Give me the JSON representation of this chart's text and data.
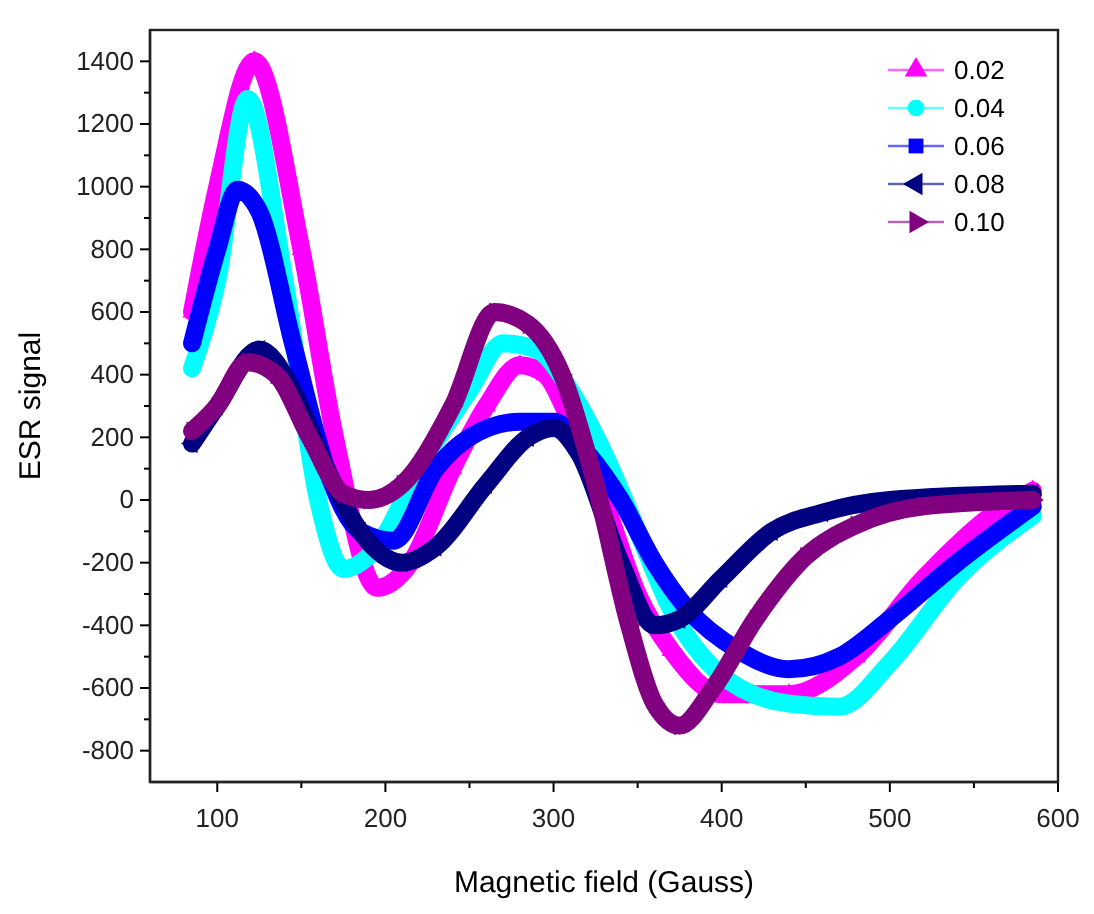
{
  "chart_data": {
    "type": "line",
    "xlabel": "Magnetic field (Gauss)",
    "ylabel": "ESR signal",
    "xlim": [
      60,
      600
    ],
    "ylim": [
      -900,
      1500
    ],
    "xticks": [
      100,
      {
        "value": 150,
        "label": null
      },
      200,
      {
        "value": 250,
        "label": null
      },
      300,
      {
        "value": 350,
        "label": null
      },
      400,
      {
        "value": 450,
        "label": null
      },
      500,
      {
        "value": 550,
        "label": null
      },
      600
    ],
    "yticks": [
      -800,
      {
        "value": -700,
        "label": null
      },
      -600,
      {
        "value": -500,
        "label": null
      },
      -400,
      {
        "value": -300,
        "label": null
      },
      -200,
      {
        "value": -100,
        "label": null
      },
      0,
      {
        "value": 100,
        "label": null
      },
      200,
      {
        "value": 300,
        "label": null
      },
      400,
      {
        "value": 500,
        "label": null
      },
      600,
      {
        "value": 700,
        "label": null
      },
      800,
      {
        "value": 900,
        "label": null
      },
      1000,
      {
        "value": 1100,
        "label": null
      },
      1200,
      {
        "value": 1300,
        "label": null
      },
      1400
    ],
    "legend": "top right",
    "grid": false,
    "series": [
      {
        "name": "0.02",
        "color": "#ff00ff",
        "marker": "triangle",
        "x": [
          85,
          100,
          122,
          150,
          170,
          195,
          215,
          240,
          260,
          280,
          295,
          310,
          330,
          350,
          370,
          400,
          440,
          480,
          520,
          560,
          585
        ],
        "values": [
          600,
          1000,
          1400,
          800,
          200,
          -280,
          -200,
          100,
          300,
          430,
          400,
          250,
          0,
          -300,
          -480,
          -620,
          -620,
          -500,
          -250,
          -50,
          30
        ]
      },
      {
        "name": "0.04",
        "color": "#00ffff",
        "marker": "circle",
        "x": [
          85,
          100,
          118,
          140,
          160,
          175,
          195,
          220,
          250,
          270,
          290,
          310,
          330,
          350,
          370,
          400,
          440,
          470,
          500,
          540,
          585
        ],
        "values": [
          420,
          700,
          1280,
          700,
          0,
          -220,
          -150,
          100,
          350,
          500,
          480,
          350,
          150,
          -100,
          -350,
          -560,
          -650,
          -660,
          -520,
          -250,
          -50
        ]
      },
      {
        "name": "0.06",
        "color": "#0000ff",
        "marker": "square",
        "x": [
          85,
          100,
          112,
          125,
          145,
          165,
          185,
          205,
          230,
          250,
          280,
          300,
          320,
          340,
          360,
          380,
          410,
          440,
          470,
          500,
          540,
          585
        ],
        "values": [
          500,
          800,
          990,
          920,
          500,
          100,
          -100,
          -130,
          100,
          200,
          250,
          250,
          150,
          0,
          -200,
          -350,
          -480,
          -540,
          -500,
          -380,
          -200,
          -20
        ]
      },
      {
        "name": "0.08",
        "color": "#000080",
        "marker": "triangle-left",
        "x": [
          85,
          100,
          125,
          145,
          165,
          185,
          210,
          230,
          260,
          285,
          300,
          315,
          340,
          360,
          375,
          400,
          430,
          460,
          500,
          585
        ],
        "values": [
          180,
          300,
          480,
          350,
          100,
          -100,
          -200,
          -150,
          50,
          200,
          230,
          150,
          -200,
          -400,
          -380,
          -250,
          -100,
          -40,
          0,
          20
        ]
      },
      {
        "name": "0.10",
        "color": "#800080",
        "marker": "triangle-right",
        "x": [
          85,
          100,
          118,
          135,
          155,
          175,
          190,
          210,
          240,
          265,
          285,
          305,
          325,
          345,
          360,
          375,
          395,
          420,
          450,
          480,
          520,
          585
        ],
        "values": [
          220,
          300,
          440,
          400,
          200,
          20,
          0,
          50,
          300,
          600,
          560,
          400,
          50,
          -400,
          -650,
          -720,
          -600,
          -380,
          -180,
          -80,
          -20,
          0
        ]
      }
    ]
  }
}
